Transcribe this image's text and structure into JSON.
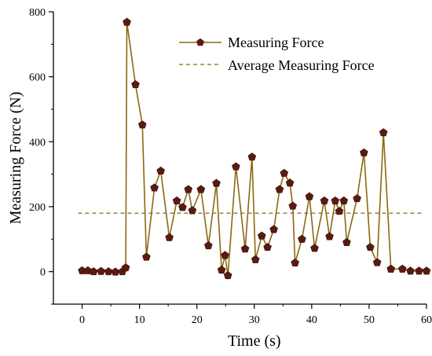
{
  "chart_data": {
    "type": "line",
    "xlabel": "Time (s)",
    "ylabel": "Measuring Force (N)",
    "xlim": [
      -5,
      60
    ],
    "ylim": [
      -100,
      800
    ],
    "xticks": [
      0,
      10,
      20,
      30,
      40,
      50,
      60
    ],
    "yticks": [
      0,
      200,
      400,
      600,
      800
    ],
    "grid": false,
    "legend_position": "top-right",
    "series": [
      {
        "name": "Measuring Force",
        "color": "#8b6914",
        "marker": "pentagon",
        "marker_color": "#5a1a12",
        "x": [
          0,
          1,
          2,
          3.3,
          4.6,
          5.8,
          7,
          7.6,
          7.8,
          9.3,
          10.5,
          11.2,
          12.6,
          13.7,
          15.2,
          16.5,
          17.5,
          18.5,
          19.2,
          20.7,
          22,
          23.4,
          24.3,
          24.9,
          25.4,
          26.8,
          28.4,
          29.6,
          30.2,
          31.3,
          32.3,
          33.4,
          34.4,
          35.2,
          36.2,
          36.7,
          37.1,
          38.3,
          39.6,
          40.5,
          42.2,
          43.1,
          44.1,
          44.8,
          45.6,
          46.1,
          47.9,
          49.1,
          50.2,
          51.4,
          52.5,
          53.8,
          55.8,
          57.2,
          58.7,
          60
        ],
        "y": [
          3,
          3,
          0,
          1,
          0,
          -1,
          0,
          12,
          768,
          576,
          452,
          45,
          258,
          310,
          105,
          218,
          198,
          253,
          188,
          253,
          80,
          272,
          5,
          50,
          -12,
          323,
          70,
          353,
          37,
          110,
          75,
          130,
          253,
          303,
          273,
          202,
          27,
          100,
          231,
          72,
          218,
          108,
          218,
          186,
          218,
          90,
          225,
          366,
          75,
          28,
          428,
          8,
          8,
          2,
          2,
          2
        ]
      },
      {
        "name": "Average Measuring Force",
        "color": "#8b6914",
        "style": "dashed",
        "value": 180
      }
    ]
  }
}
